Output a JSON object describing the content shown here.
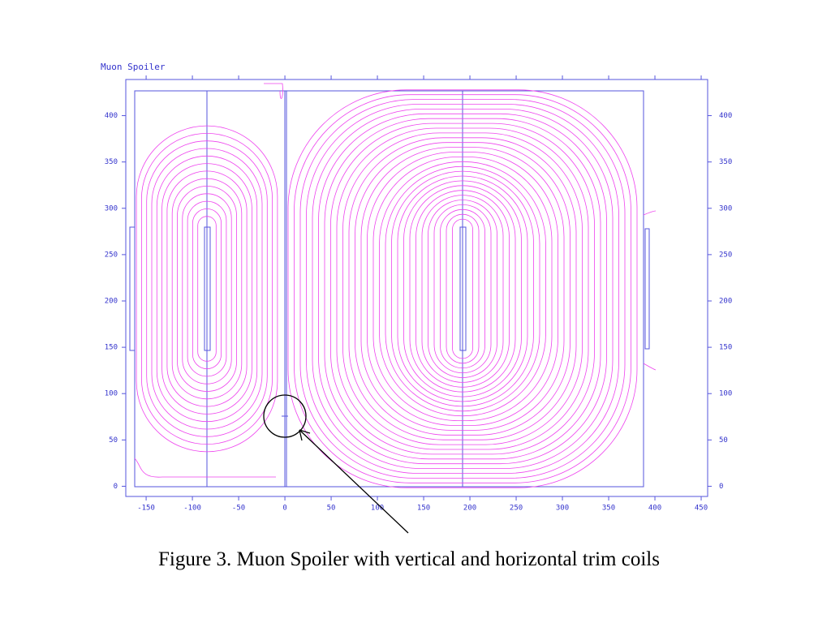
{
  "chart_data": {
    "type": "field-plot",
    "title": "Muon Spoiler",
    "caption": "Figure 3. Muon Spoiler with vertical and horizontal trim coils",
    "xlim": [
      -172,
      457
    ],
    "ylim": [
      -11,
      439
    ],
    "xticks": [
      -150,
      -100,
      -50,
      0,
      50,
      100,
      150,
      200,
      250,
      300,
      350,
      400,
      450
    ],
    "yticks": [
      0,
      50,
      100,
      150,
      200,
      250,
      300,
      350,
      400
    ],
    "axis_color": "#5555dd",
    "line_color": "#ee44ee"
  }
}
